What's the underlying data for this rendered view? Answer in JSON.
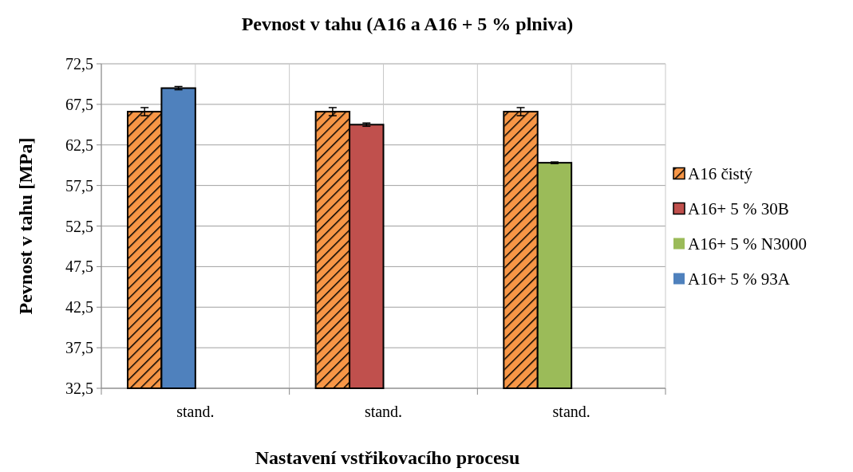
{
  "chart_data": {
    "type": "bar",
    "title": "Pevnost v tahu (A16 a A16 + 5 % plniva)",
    "xlabel": "Nastavení vstřikovacího procesu",
    "ylabel": "Pevnost v tahu [MPa]",
    "categories": [
      "stand.",
      "stand.",
      "stand."
    ],
    "series": [
      {
        "name": "A16 čistý",
        "color": "#f79646",
        "values": [
          66.6,
          66.6,
          66.6
        ],
        "errors": [
          0.5,
          0.5,
          0.5
        ]
      },
      {
        "name": "A16+ 5 % 30B",
        "color": "#c0504d",
        "values": [
          null,
          65.0,
          null
        ],
        "errors": [
          null,
          0.2,
          null
        ]
      },
      {
        "name": "A16+ 5 % N3000",
        "color": "#9bbb59",
        "values": [
          null,
          null,
          60.3
        ],
        "errors": [
          null,
          null,
          0.1
        ]
      },
      {
        "name": "A16+ 5 % 93A",
        "color": "#4f81bd",
        "values": [
          69.5,
          null,
          null
        ],
        "errors": [
          0.2,
          null,
          null
        ]
      }
    ],
    "ylim": [
      32.5,
      72.5
    ],
    "yticks": [
      {
        "value": 32.5,
        "label": "32,5"
      },
      {
        "value": 37.5,
        "label": "37,5"
      },
      {
        "value": 42.5,
        "label": "42,5"
      },
      {
        "value": 47.5,
        "label": "47,5"
      },
      {
        "value": 52.5,
        "label": "52,5"
      },
      {
        "value": 57.5,
        "label": "57,5"
      },
      {
        "value": 62.5,
        "label": "62,5"
      },
      {
        "value": 67.5,
        "label": "67,5"
      },
      {
        "value": 72.5,
        "label": "72,5"
      }
    ],
    "grid": true,
    "legend": "right"
  }
}
